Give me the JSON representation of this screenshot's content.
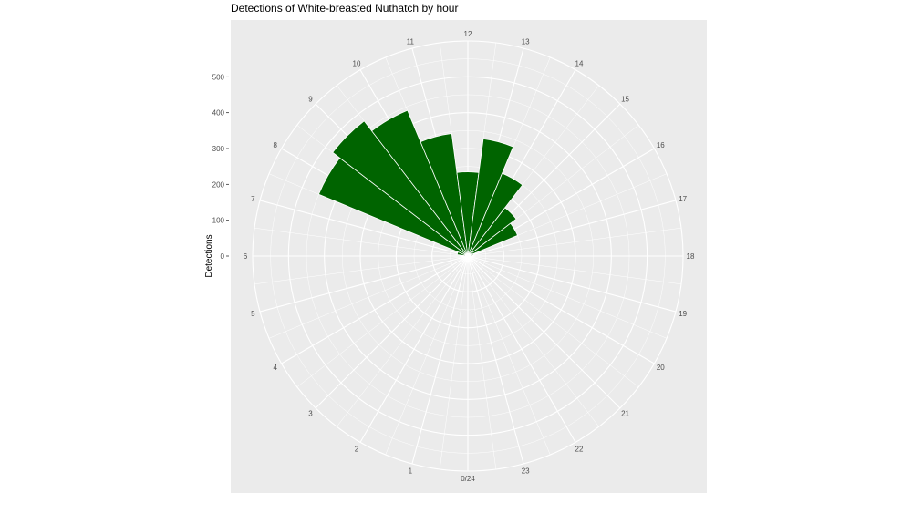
{
  "chart_data": {
    "type": "bar",
    "coord": "polar",
    "title": "Detections of White-breasted Nuthatch by hour",
    "xlabel": "",
    "ylabel": "Detections",
    "categories": [
      "0/24",
      "1",
      "2",
      "3",
      "4",
      "5",
      "6",
      "7",
      "8",
      "9",
      "10",
      "11",
      "12",
      "13",
      "14",
      "15",
      "16",
      "17",
      "18",
      "19",
      "20",
      "21",
      "22",
      "23"
    ],
    "values": [
      0,
      0,
      0,
      0,
      0,
      0,
      0,
      30,
      450,
      475,
      440,
      345,
      235,
      330,
      250,
      170,
      150,
      15,
      0,
      0,
      0,
      0,
      0,
      0
    ],
    "y_ticks": [
      0,
      100,
      200,
      300,
      400,
      500
    ],
    "ylim": [
      0,
      600
    ],
    "bar_color": "#006400",
    "panel_color": "#ebebeb",
    "grid": true
  }
}
